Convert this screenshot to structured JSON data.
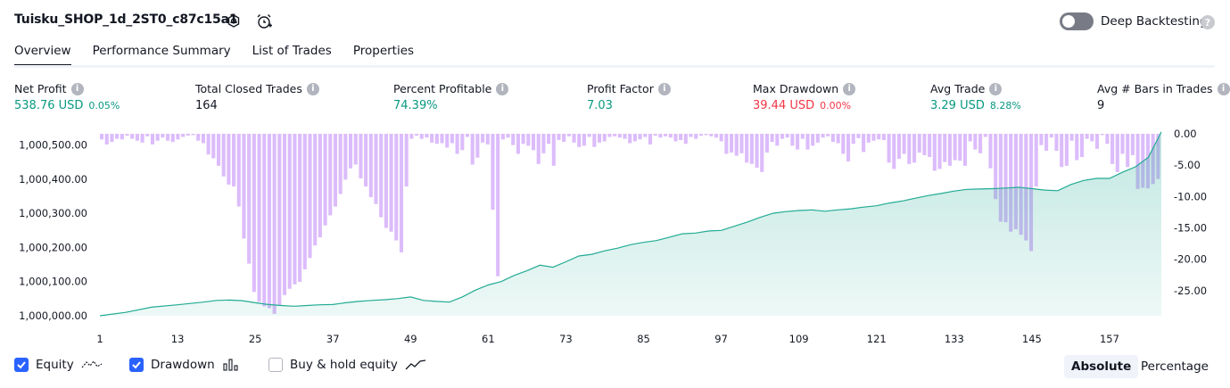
{
  "header": {
    "strategy_name": "Tuisku_SHOP_1d_2ST0_c87c15a1",
    "settings_icon": "gear-icon",
    "alert_icon": "add-alert-icon",
    "deep_backtesting_label": "Deep Backtesting",
    "deep_backtesting_enabled": false,
    "help_icon": "?"
  },
  "tabs": [
    {
      "label": "Overview",
      "active": true
    },
    {
      "label": "Performance Summary",
      "active": false
    },
    {
      "label": "List of Trades",
      "active": false
    },
    {
      "label": "Properties",
      "active": false
    }
  ],
  "metrics": [
    {
      "label": "Net Profit",
      "value": "538.76 USD",
      "pct": "0.05%",
      "color": "#089981"
    },
    {
      "label": "Total Closed Trades",
      "value": "164",
      "pct": "",
      "color": "#131722"
    },
    {
      "label": "Percent Profitable",
      "value": "74.39%",
      "pct": "",
      "color": "#089981"
    },
    {
      "label": "Profit Factor",
      "value": "7.03",
      "pct": "",
      "color": "#089981"
    },
    {
      "label": "Max Drawdown",
      "value": "39.44 USD",
      "pct": "0.00%",
      "color": "#f23645"
    },
    {
      "label": "Avg Trade",
      "value": "3.29 USD",
      "pct": "8.28%",
      "color": "#089981"
    },
    {
      "label": "Avg # Bars in Trades",
      "value": "9",
      "pct": "",
      "color": "#131722"
    }
  ],
  "chart_data": {
    "type": "area",
    "left_axis": {
      "ticks": [
        "1,000,000.00",
        "1,000,100.00",
        "1,000,200.00",
        "1,000,300.00",
        "1,000,400.00",
        "1,000,500.00"
      ],
      "range": [
        1000000,
        1000520
      ]
    },
    "right_axis": {
      "ticks": [
        "0.00",
        "-5.00",
        "-10.00",
        "-15.00",
        "-20.00",
        "-25.00"
      ],
      "range": [
        -29,
        0
      ]
    },
    "x_ticks": [
      "1",
      "13",
      "25",
      "37",
      "49",
      "61",
      "73",
      "85",
      "97",
      "109",
      "121",
      "133",
      "145",
      "157"
    ],
    "x_range": [
      1,
      165
    ],
    "series": [
      {
        "name": "Equity",
        "type": "area",
        "color": "#22ab94",
        "points": [
          [
            1,
            0
          ],
          [
            5,
            10
          ],
          [
            9,
            25
          ],
          [
            13,
            32
          ],
          [
            17,
            40
          ],
          [
            19,
            45
          ],
          [
            21,
            46
          ],
          [
            23,
            44
          ],
          [
            25,
            38
          ],
          [
            27,
            33
          ],
          [
            29,
            30
          ],
          [
            31,
            28
          ],
          [
            33,
            30
          ],
          [
            35,
            32
          ],
          [
            37,
            33
          ],
          [
            39,
            38
          ],
          [
            41,
            42
          ],
          [
            43,
            45
          ],
          [
            45,
            47
          ],
          [
            47,
            50
          ],
          [
            49,
            55
          ],
          [
            51,
            45
          ],
          [
            53,
            42
          ],
          [
            55,
            40
          ],
          [
            57,
            55
          ],
          [
            59,
            75
          ],
          [
            61,
            90
          ],
          [
            63,
            100
          ],
          [
            65,
            118
          ],
          [
            67,
            132
          ],
          [
            69,
            148
          ],
          [
            71,
            142
          ],
          [
            73,
            158
          ],
          [
            75,
            175
          ],
          [
            77,
            180
          ],
          [
            79,
            190
          ],
          [
            81,
            198
          ],
          [
            83,
            208
          ],
          [
            85,
            215
          ],
          [
            87,
            220
          ],
          [
            89,
            230
          ],
          [
            91,
            240
          ],
          [
            93,
            242
          ],
          [
            95,
            248
          ],
          [
            97,
            250
          ],
          [
            99,
            262
          ],
          [
            101,
            274
          ],
          [
            103,
            288
          ],
          [
            105,
            300
          ],
          [
            107,
            305
          ],
          [
            109,
            308
          ],
          [
            111,
            310
          ],
          [
            113,
            306
          ],
          [
            115,
            310
          ],
          [
            117,
            313
          ],
          [
            119,
            318
          ],
          [
            121,
            322
          ],
          [
            123,
            330
          ],
          [
            125,
            336
          ],
          [
            127,
            344
          ],
          [
            129,
            352
          ],
          [
            131,
            358
          ],
          [
            133,
            365
          ],
          [
            135,
            370
          ],
          [
            137,
            371
          ],
          [
            139,
            372
          ],
          [
            141,
            374
          ],
          [
            143,
            376
          ],
          [
            145,
            372
          ],
          [
            147,
            368
          ],
          [
            149,
            366
          ],
          [
            151,
            384
          ],
          [
            153,
            396
          ],
          [
            155,
            402
          ],
          [
            157,
            402
          ],
          [
            159,
            420
          ],
          [
            161,
            436
          ],
          [
            163,
            464
          ],
          [
            165,
            538
          ]
        ]
      },
      {
        "name": "Drawdown",
        "type": "bar",
        "color": "#c590f9",
        "values": [
          -0.9,
          -1.7,
          -1.3,
          -0.8,
          -0.9,
          -0.3,
          -0.8,
          -1.1,
          -1.4,
          -0.4,
          -1.7,
          -1.1,
          -0.6,
          -1.1,
          -1.3,
          -0.9,
          -0.5,
          -0.3,
          -0.2,
          -1.1,
          -1.5,
          -3.3,
          -3.9,
          -5.1,
          -6.8,
          -8.1,
          -8.4,
          -11.6,
          -16.7,
          -20.7,
          -25.2,
          -26.8,
          -27.5,
          -27.8,
          -28.7,
          -27.4,
          -25.7,
          -24.7,
          -24.0,
          -23.6,
          -21.6,
          -19.8,
          -17.8,
          -16.5,
          -14.6,
          -13.0,
          -11.6,
          -9.6,
          -7.3,
          -5.5,
          -4.9,
          -7.1,
          -8.4,
          -10.1,
          -11.2,
          -13.3,
          -15.0,
          -15.6,
          -17.0,
          -18.9,
          -8.4,
          -0.8,
          -0.3,
          -0.8,
          -0.6,
          -1.4,
          -1.6,
          -1.5,
          -2.2,
          -1.5,
          -3.2,
          -2.6,
          -0.5,
          -4.9,
          -3.8,
          -1.4,
          -1.7,
          -12.1,
          -22.7,
          -0.9,
          -0.6,
          -1.8,
          -3.2,
          -1.6,
          -1.9,
          -2.6,
          -4.8,
          -3.1,
          -1.6,
          -5.1,
          -1.0,
          -1.3,
          -0.4,
          -1.4,
          -2.1,
          -1.9,
          -0.5,
          -2.1,
          -1.4,
          -1.2,
          -0.5,
          -0.4,
          -0.6,
          -0.8,
          -1.5,
          -1.2,
          -0.9,
          -0.5,
          -1.7,
          -0.3,
          -0.6,
          -0.4,
          -0.6,
          -1.2,
          -1.0,
          -1.6,
          -0.5,
          -0.8,
          -0.3,
          -0.2,
          -0.4,
          -0.6,
          -1.2,
          -3.2,
          -3.0,
          -3.5,
          -3.1,
          -4.6,
          -4.8,
          -5.4,
          -6.1,
          -3.0,
          -1.3,
          -1.9,
          -0.8,
          -0.6,
          -1.9,
          -2.5,
          -0.8,
          -2.5,
          -1.9,
          -1.4,
          -0.6,
          -0.4,
          -1.3,
          -1.5,
          -3.2,
          -4.4,
          -1.6,
          -0.7,
          -2.9,
          -1.4,
          -1.1,
          -0.9,
          -1.0,
          -4.6,
          -5.6,
          -4.0,
          -3.2,
          -4.8,
          -4.6,
          -3.0,
          -3.4,
          -3.7,
          -5.9,
          -5.6,
          -4.5,
          -5.1,
          -4.2,
          -4.3,
          -5.1,
          -1.2,
          -2.5,
          -3.1,
          -0.5,
          -5.5,
          -10.4,
          -14.0,
          -14.1,
          -15.6,
          -15.2,
          -16.1,
          -17.0,
          -18.7,
          -8.4,
          -1.8,
          -2.7,
          -0.6,
          -2.7,
          -5.3,
          -5.1,
          -1.1,
          -4.2,
          -3.7,
          -0.8,
          -1.2,
          -2.4,
          -0.2,
          -1.6,
          -4.8,
          -6.1,
          -3.2,
          -5.3,
          -3.4,
          -8.8,
          -8.6,
          -8.7,
          -8.0,
          -7.2
        ]
      }
    ]
  },
  "legend": {
    "items": [
      {
        "label": "Equity",
        "checked": true,
        "icon": "equity-line-icon"
      },
      {
        "label": "Drawdown",
        "checked": true,
        "icon": "drawdown-bars-icon"
      },
      {
        "label": "Buy & hold equity",
        "checked": false,
        "icon": "buy-hold-line-icon"
      }
    ],
    "absolute_label": "Absolute",
    "percentage_label": "Percentage",
    "mode": "Absolute"
  }
}
